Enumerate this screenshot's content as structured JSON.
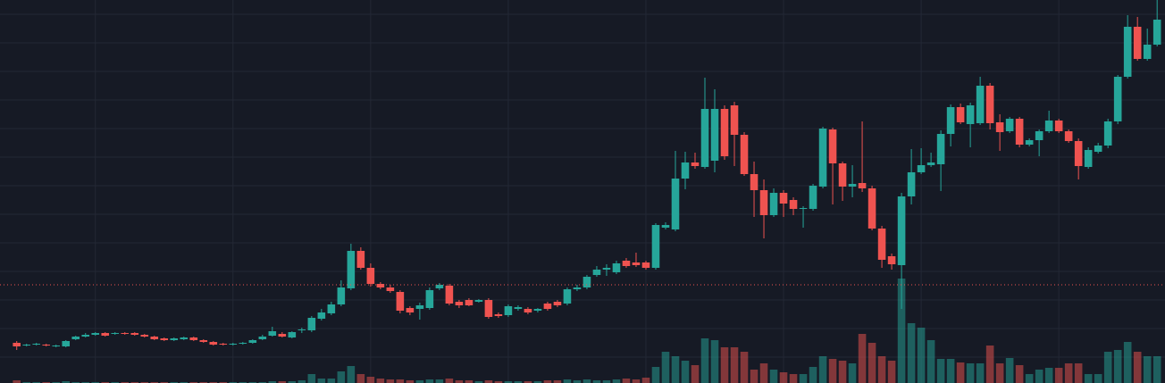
{
  "chart_data": {
    "type": "candlestick",
    "up_color": "#26a69a",
    "down_color": "#ef5350",
    "volume_opacity": 0.5,
    "grid": true,
    "ylim": [
      0,
      429
    ],
    "volume_lim": [
      0,
      429
    ],
    "xlim": [
      -1.7,
      116.8
    ],
    "yticks": [
      29,
      61,
      93,
      125,
      157,
      189,
      221,
      253,
      285,
      317,
      349,
      381,
      413
    ],
    "xticks": [
      8,
      22,
      36,
      50,
      64,
      78,
      92,
      106
    ],
    "price_line": 110,
    "open": [
      45,
      42,
      43,
      43,
      41,
      41,
      49,
      52,
      54,
      56,
      55,
      56,
      56,
      54,
      52,
      50,
      48,
      49,
      51,
      48,
      46,
      44,
      43,
      44,
      45,
      49,
      53,
      55,
      51,
      59,
      59,
      72,
      78,
      88,
      106,
      148,
      129,
      111,
      107,
      102,
      84,
      83,
      84,
      106,
      109,
      91,
      93,
      91,
      93,
      77,
      76,
      83,
      83,
      81,
      89,
      91,
      89,
      105,
      107,
      121,
      127,
      124,
      137,
      135,
      135,
      129,
      174,
      172,
      229,
      247,
      242,
      249,
      307,
      311,
      278,
      234,
      216,
      188,
      213,
      205,
      195,
      195,
      220,
      284,
      246,
      220,
      224,
      218,
      173,
      142,
      132,
      209,
      236,
      244,
      245,
      279,
      309,
      290,
      291,
      333,
      292,
      282,
      296,
      267,
      272,
      282,
      294,
      282,
      271,
      242,
      259,
      266,
      293,
      343,
      399,
      363,
      379
    ],
    "close": [
      41,
      43,
      44,
      42,
      42,
      47,
      52,
      54,
      56,
      53,
      56,
      55,
      54,
      52,
      49,
      48,
      50,
      51,
      48,
      46,
      43,
      43,
      44,
      45,
      48,
      52,
      58,
      52,
      57,
      60,
      73,
      79,
      88,
      107,
      148,
      129,
      111,
      107,
      103,
      81,
      79,
      87,
      104,
      110,
      89,
      87,
      87,
      93,
      74,
      75,
      86,
      85,
      79,
      83,
      83,
      87,
      105,
      107,
      119,
      127,
      129,
      134,
      131,
      132,
      129,
      177,
      177,
      229,
      247,
      243,
      307,
      307,
      254,
      278,
      234,
      216,
      188,
      213,
      201,
      195,
      196,
      221,
      285,
      246,
      220,
      223,
      218,
      173,
      138,
      133,
      209,
      236,
      244,
      247,
      279,
      309,
      292,
      311,
      333,
      291,
      281,
      296,
      267,
      272,
      282,
      294,
      282,
      271,
      243,
      261,
      266,
      293,
      343,
      399,
      363,
      379,
      407
    ],
    "high": [
      47,
      44,
      45,
      44,
      43,
      48,
      53,
      56,
      57,
      57,
      57,
      57,
      57,
      55,
      53,
      51,
      51,
      52,
      52,
      49,
      47,
      45,
      45,
      46,
      49,
      54,
      63,
      57,
      58,
      62,
      75,
      83,
      91,
      115,
      156,
      152,
      134,
      113,
      110,
      104,
      86,
      90,
      107,
      112,
      111,
      93,
      95,
      94,
      95,
      79,
      88,
      87,
      85,
      84,
      91,
      93,
      107,
      110,
      121,
      131,
      133,
      137,
      140,
      146,
      137,
      179,
      180,
      260,
      259,
      258,
      342,
      329,
      311,
      315,
      281,
      248,
      228,
      218,
      216,
      208,
      198,
      223,
      287,
      286,
      248,
      244,
      293,
      221,
      176,
      145,
      213,
      262,
      263,
      258,
      283,
      312,
      313,
      314,
      343,
      336,
      301,
      298,
      298,
      274,
      284,
      305,
      296,
      284,
      274,
      264,
      269,
      296,
      345,
      412,
      410,
      397,
      429
    ],
    "low": [
      37,
      41,
      42,
      41,
      40,
      40,
      48,
      51,
      53,
      52,
      54,
      54,
      53,
      51,
      48,
      47,
      47,
      48,
      47,
      45,
      42,
      42,
      42,
      43,
      44,
      48,
      52,
      51,
      50,
      56,
      57,
      70,
      76,
      86,
      104,
      127,
      108,
      105,
      101,
      78,
      76,
      71,
      82,
      104,
      87,
      84,
      86,
      90,
      72,
      73,
      74,
      81,
      77,
      79,
      81,
      85,
      87,
      103,
      105,
      119,
      120,
      122,
      129,
      130,
      127,
      127,
      172,
      170,
      217,
      240,
      240,
      236,
      250,
      243,
      232,
      186,
      162,
      186,
      186,
      188,
      174,
      193,
      218,
      200,
      204,
      208,
      214,
      171,
      129,
      127,
      83,
      200,
      234,
      242,
      215,
      265,
      290,
      264,
      289,
      284,
      260,
      280,
      264,
      265,
      254,
      280,
      280,
      269,
      228,
      240,
      257,
      263,
      290,
      341,
      361,
      361,
      377
    ],
    "volume": [
      3,
      1,
      1,
      1,
      1,
      2,
      1,
      1,
      1,
      1,
      1,
      1,
      1,
      1,
      1,
      1,
      1,
      1,
      1,
      1,
      1,
      1,
      1,
      1,
      1,
      1,
      2,
      2,
      2,
      3,
      10,
      5,
      5,
      13,
      19,
      10,
      7,
      5,
      4,
      4,
      3,
      3,
      4,
      4,
      5,
      3,
      3,
      2,
      3,
      2,
      2,
      2,
      2,
      2,
      3,
      3,
      4,
      3,
      4,
      3,
      3,
      4,
      5,
      4,
      6,
      18,
      35,
      30,
      25,
      20,
      50,
      48,
      40,
      40,
      35,
      15,
      22,
      15,
      12,
      10,
      10,
      18,
      30,
      27,
      25,
      22,
      55,
      45,
      30,
      25,
      117,
      67,
      62,
      48,
      27,
      27,
      23,
      22,
      22,
      42,
      22,
      28,
      20,
      10,
      15,
      17,
      17,
      22,
      22,
      10,
      10,
      35,
      37,
      46,
      35,
      30,
      30
    ]
  }
}
